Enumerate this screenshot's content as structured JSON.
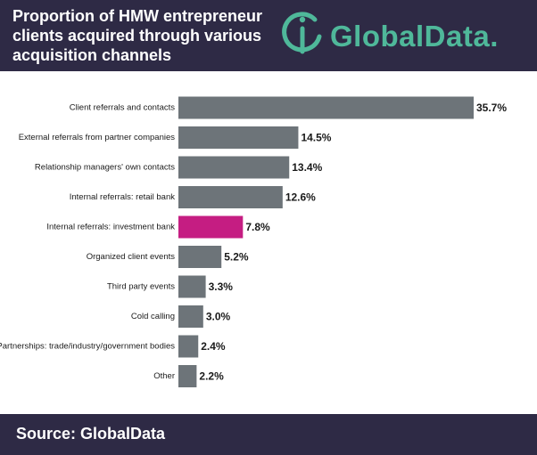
{
  "header": {
    "title": "Proportion of HMW entrepreneur clients acquired through various acquisition channels",
    "logo_text": "GlobalData."
  },
  "footer": {
    "source": "Source: GlobalData"
  },
  "colors": {
    "header_bg": "#2e2a45",
    "bar_default": "#6d7479",
    "bar_highlight": "#c51d82",
    "logo": "#4fb89a"
  },
  "chart_data": {
    "type": "bar",
    "orientation": "horizontal",
    "categories": [
      "Client referrals and contacts",
      "External referrals from partner companies",
      "Relationship managers' own contacts",
      "Internal referrals: retail bank",
      "Internal referrals: investment bank",
      "Organized client events",
      "Third party events",
      "Cold calling",
      "Partnerships: trade/industry/government bodies",
      "Other"
    ],
    "values": [
      35.7,
      14.5,
      13.4,
      12.6,
      7.8,
      5.2,
      3.3,
      3.0,
      2.4,
      2.2
    ],
    "value_labels": [
      "35.7%",
      "14.5%",
      "13.4%",
      "12.6%",
      "7.8%",
      "5.2%",
      "3.3%",
      "3.0%",
      "2.4%",
      "2.2%"
    ],
    "highlight_index": 4,
    "xlim": [
      0,
      35.7
    ],
    "grid": false,
    "legend": "none"
  }
}
